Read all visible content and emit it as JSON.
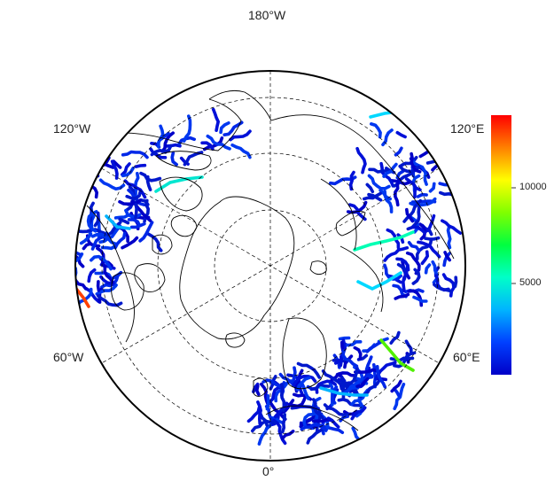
{
  "map": {
    "type": "polar-stereographic",
    "projection_center": "North Pole",
    "graticule": "dashed",
    "coordinate_labels": {
      "top": "180°W",
      "bottom": "0°",
      "upper_left": "120°W",
      "upper_right": "120°E",
      "lower_left": "60°W",
      "lower_right": "60°E"
    },
    "colors": {
      "coast": "#000000",
      "graticule": "#000000",
      "frame": "#000000",
      "background": "#ffffff"
    }
  },
  "colorbar": {
    "ticks": [
      {
        "label": "10000",
        "value": 10000
      },
      {
        "label": "5000",
        "value": 5000
      }
    ],
    "vmin": 0,
    "vmax": 13500,
    "colormap": [
      "#0000c8",
      "#0040ff",
      "#00b4ff",
      "#00ffc8",
      "#00ff40",
      "#80ff00",
      "#ffff00",
      "#ff8000",
      "#ff0000"
    ]
  }
}
